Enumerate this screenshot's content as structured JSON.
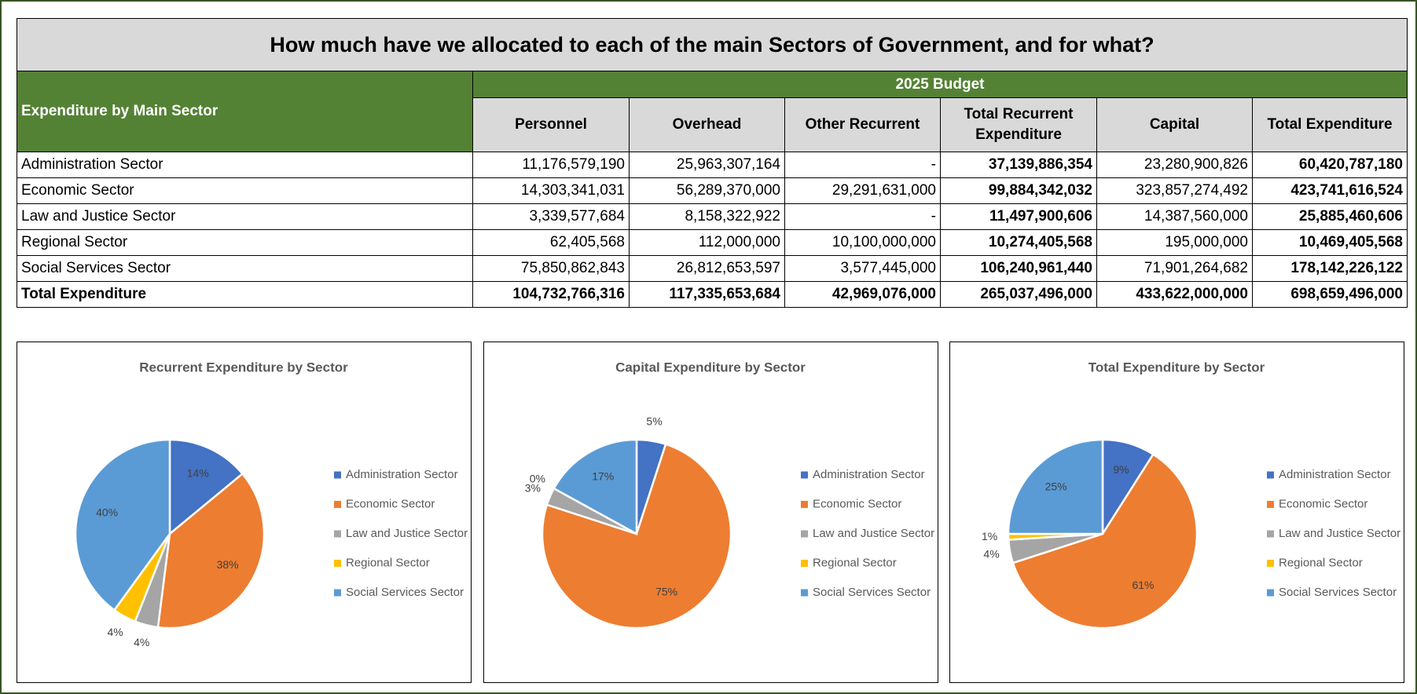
{
  "title": "How much have we allocated to each of the main Sectors of Government, and for what?",
  "table": {
    "row_header": "Expenditure by Main Sector",
    "group_header": "2025 Budget",
    "columns": [
      "Personnel",
      "Overhead",
      "Other Recurrent",
      "Total Recurrent Expenditure",
      "Capital",
      "Total Expenditure"
    ],
    "rows": [
      [
        "Administration Sector",
        "11,176,579,190",
        "25,963,307,164",
        "-",
        "37,139,886,354",
        "23,280,900,826",
        "60,420,787,180"
      ],
      [
        "Economic Sector",
        "14,303,341,031",
        "56,289,370,000",
        "29,291,631,000",
        "99,884,342,032",
        "323,857,274,492",
        "423,741,616,524"
      ],
      [
        "Law and Justice Sector",
        "3,339,577,684",
        "8,158,322,922",
        "-",
        "11,497,900,606",
        "14,387,560,000",
        "25,885,460,606"
      ],
      [
        "Regional Sector",
        "62,405,568",
        "112,000,000",
        "10,100,000,000",
        "10,274,405,568",
        "195,000,000",
        "10,469,405,568"
      ],
      [
        "Social Services Sector",
        "75,850,862,843",
        "26,812,653,597",
        "3,577,445,000",
        "106,240,961,440",
        "71,901,264,682",
        "178,142,226,122"
      ],
      [
        "Total Expenditure",
        "104,732,766,316",
        "117,335,653,684",
        "42,969,076,000",
        "265,037,496,000",
        "433,622,000,000",
        "698,659,496,000"
      ]
    ]
  },
  "chart_data": [
    {
      "type": "pie",
      "title": "Recurrent Expenditure by Sector",
      "categories": [
        "Administration Sector",
        "Economic Sector",
        "Law and Justice Sector",
        "Regional Sector",
        "Social Services Sector"
      ],
      "values": [
        14,
        38,
        4,
        4,
        40
      ],
      "value_labels": [
        "14%",
        "38%",
        "4%",
        "4%",
        "40%"
      ],
      "colors": [
        "#4472c4",
        "#ed7d31",
        "#a5a5a5",
        "#ffc000",
        "#5b9bd5"
      ]
    },
    {
      "type": "pie",
      "title": "Capital Expenditure by Sector",
      "categories": [
        "Administration Sector",
        "Economic Sector",
        "Law and Justice Sector",
        "Regional Sector",
        "Social Services Sector"
      ],
      "values": [
        5,
        75,
        3,
        0,
        17
      ],
      "value_labels": [
        "5%",
        "75%",
        "3%",
        "0%",
        "17%"
      ],
      "colors": [
        "#4472c4",
        "#ed7d31",
        "#a5a5a5",
        "#ffc000",
        "#5b9bd5"
      ]
    },
    {
      "type": "pie",
      "title": "Total Expenditure by Sector",
      "categories": [
        "Administration Sector",
        "Economic Sector",
        "Law and Justice Sector",
        "Regional Sector",
        "Social Services Sector"
      ],
      "values": [
        9,
        61,
        4,
        1,
        25
      ],
      "value_labels": [
        "9%",
        "61%",
        "4%",
        "1%",
        "25%"
      ],
      "colors": [
        "#4472c4",
        "#ed7d31",
        "#a5a5a5",
        "#ffc000",
        "#5b9bd5"
      ]
    }
  ]
}
